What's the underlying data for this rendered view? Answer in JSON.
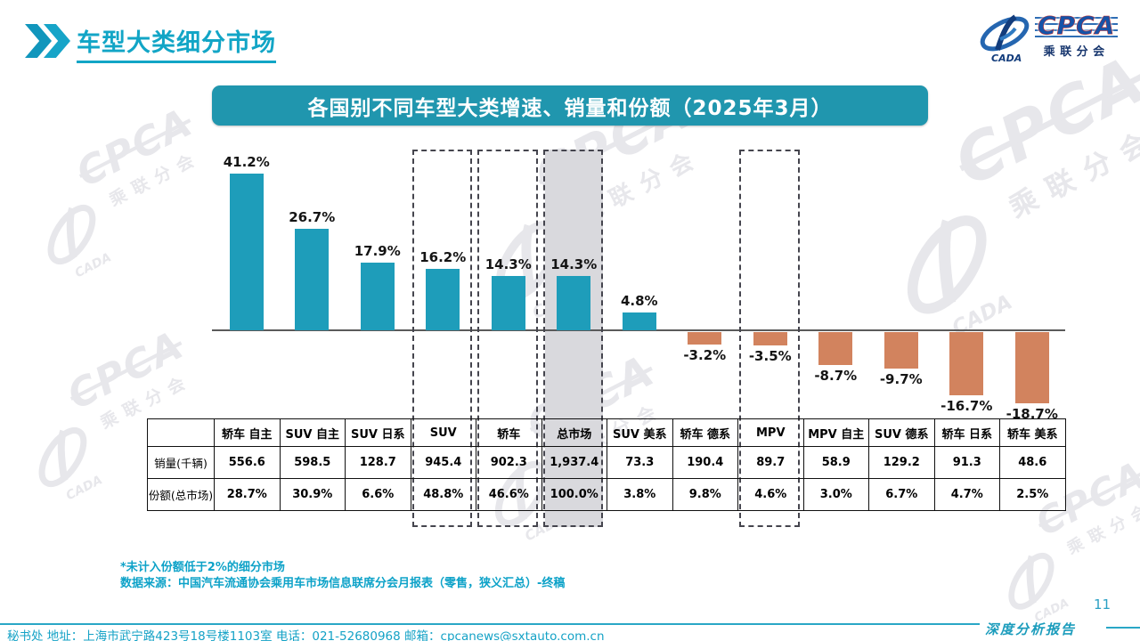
{
  "page": {
    "header_title": "车型大类细分市场",
    "page_number": "11",
    "footer_left": "秘书处  地址：上海市武宁路423号18号楼1103室 电话：021-52680968  邮箱：cpcanews@sxtauto.com.cn",
    "footer_right": "深度分析报告"
  },
  "logo": {
    "cpca": "CPCA",
    "cada": "CADA",
    "subtitle": "乘联分会"
  },
  "footnotes": [
    "*未计入份额低于2%的细分市场",
    "数据来源：中国汽车流通协会乘用车市场信息联席分会月报表（零售，狭义汇总）-终稿"
  ],
  "chart_data": {
    "type": "bar",
    "title": "各国别不同车型大类增速、销量和份额（2025年3月）",
    "value_suffix": "%",
    "xlabel": "",
    "ylabel": "",
    "grid": false,
    "legend": false,
    "categories": [
      "轿车 自主",
      "SUV 自主",
      "SUV 日系",
      "SUV",
      "轿车",
      "总市场",
      "SUV 美系",
      "轿车 德系",
      "MPV",
      "MPV 自主",
      "SUV 德系",
      "轿车 日系",
      "轿车 美系"
    ],
    "growth_pct": [
      41.2,
      26.7,
      17.9,
      16.2,
      14.3,
      14.3,
      4.8,
      -3.2,
      -3.5,
      -8.7,
      -9.7,
      -16.7,
      -18.7
    ],
    "growth_labels": [
      "41.2%",
      "26.7%",
      "17.9%",
      "16.2%",
      "14.3%",
      "14.3%",
      "4.8%",
      "-3.2%",
      "-3.5%",
      "-8.7%",
      "-9.7%",
      "-16.7%",
      "-18.7%"
    ],
    "highlight_boxed_indexes": [
      3,
      4,
      5,
      8
    ],
    "shaded_column_index": 5,
    "positive_color": "#1e9dba",
    "negative_color": "#d2835e",
    "shade_color": "#d9d9dd",
    "banner_color": "#2096ae",
    "table": {
      "row_headers": [
        "销量(千辆)",
        "份额(总市场)"
      ],
      "rows": [
        [
          "556.6",
          "598.5",
          "128.7",
          "945.4",
          "902.3",
          "1,937.4",
          "73.3",
          "190.4",
          "89.7",
          "58.9",
          "129.2",
          "91.3",
          "48.6"
        ],
        [
          "28.7%",
          "30.9%",
          "6.6%",
          "48.8%",
          "46.6%",
          "100.0%",
          "3.8%",
          "9.8%",
          "4.6%",
          "3.0%",
          "6.7%",
          "4.7%",
          "2.5%"
        ]
      ]
    }
  }
}
